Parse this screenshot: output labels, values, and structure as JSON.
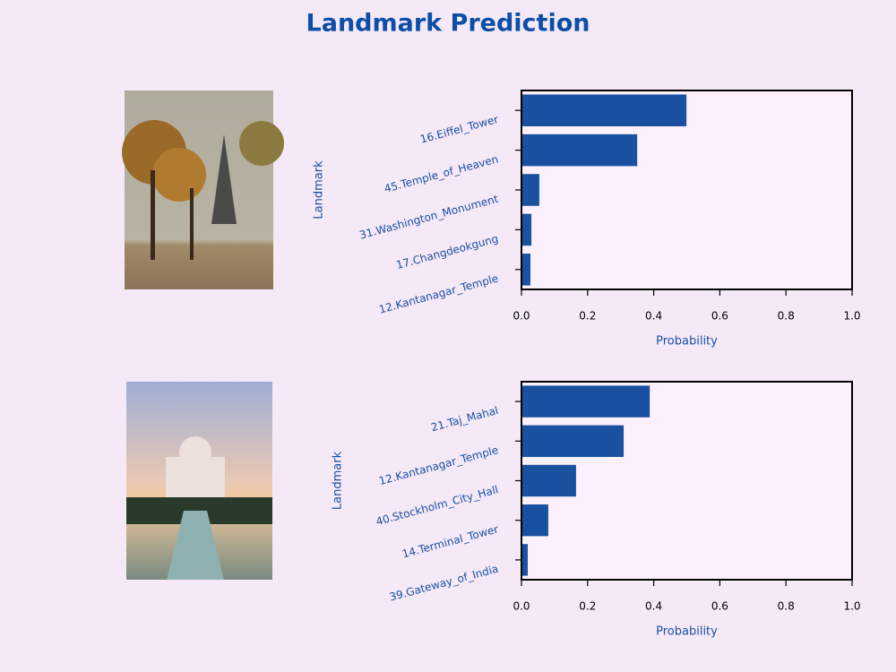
{
  "title": "Landmark Prediction",
  "chart_data": [
    {
      "type": "barh",
      "categories": [
        "16.Eiffel_Tower",
        "45.Temple_of_Heaven",
        "31.Washington_Monument",
        "17.Changdeokgung",
        "12.Kantanagar_Temple"
      ],
      "values": [
        0.499,
        0.35,
        0.054,
        0.03,
        0.027
      ],
      "color": "#1a50a0",
      "xlabel": "Probability",
      "ylabel": "Landmark",
      "xlim": [
        0,
        1
      ],
      "xticks": [
        {
          "value": 0,
          "label": "0.0"
        },
        0.2,
        0.4,
        0.6,
        0.8,
        {
          "value": 1,
          "label": "1.0"
        }
      ]
    },
    {
      "type": "barh",
      "categories": [
        "21.Taj_Mahal",
        "12.Kantanagar_Temple",
        "40.Stockholm_City_Hall",
        "14.Terminal_Tower",
        "39.Gateway_of_India"
      ],
      "values": [
        0.388,
        0.309,
        0.165,
        0.081,
        0.019
      ],
      "color": "#1a50a0",
      "xlabel": "Probability",
      "ylabel": "Landmark",
      "xlim": [
        0,
        1
      ],
      "xticks": [
        {
          "value": 0,
          "label": "0.0"
        },
        0.2,
        0.4,
        0.6,
        0.8,
        {
          "value": 1,
          "label": "1.0"
        }
      ]
    }
  ]
}
